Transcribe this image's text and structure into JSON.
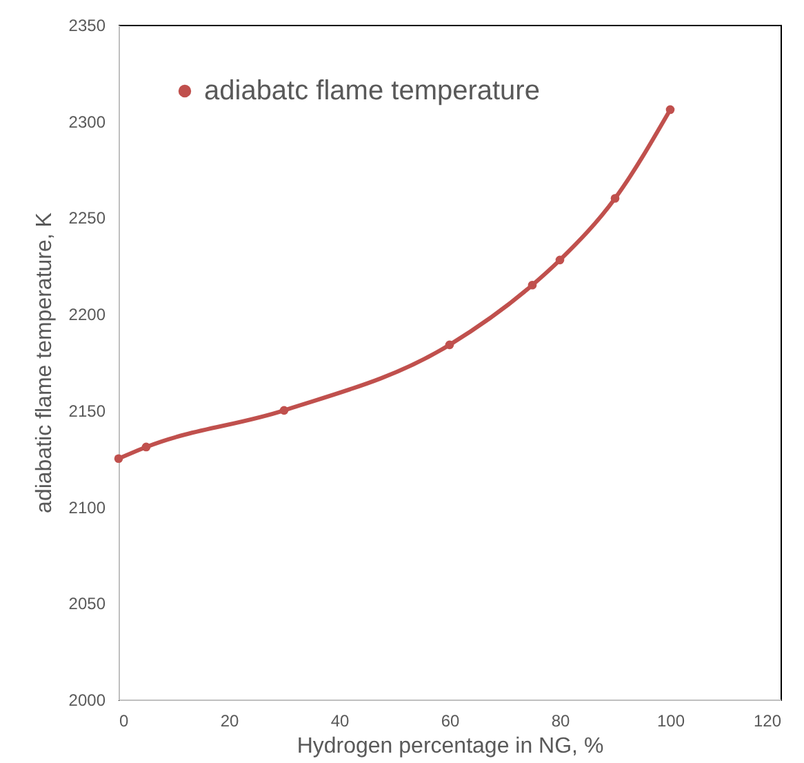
{
  "chart_data": {
    "type": "line",
    "xlabel": "Hydrogen percentage in NG, %",
    "ylabel": "adiabatic flame temperature, K",
    "x": [
      0,
      5,
      30,
      60,
      75,
      80,
      90,
      100
    ],
    "series": [
      {
        "name": "adiabatc flame temperature",
        "color": "#c0504d",
        "values": [
          2125,
          2131,
          2150,
          2184,
          2215,
          2228,
          2260,
          2306
        ]
      }
    ],
    "xlim": [
      0,
      120
    ],
    "xticks": [
      0,
      20,
      40,
      60,
      80,
      100,
      120
    ],
    "ylim": [
      2000,
      2350
    ],
    "yticks": [
      2000,
      2050,
      2100,
      2150,
      2200,
      2250,
      2300,
      2350
    ],
    "grid": false,
    "legend": "top left",
    "marker": "circle",
    "line_style": "solid"
  }
}
